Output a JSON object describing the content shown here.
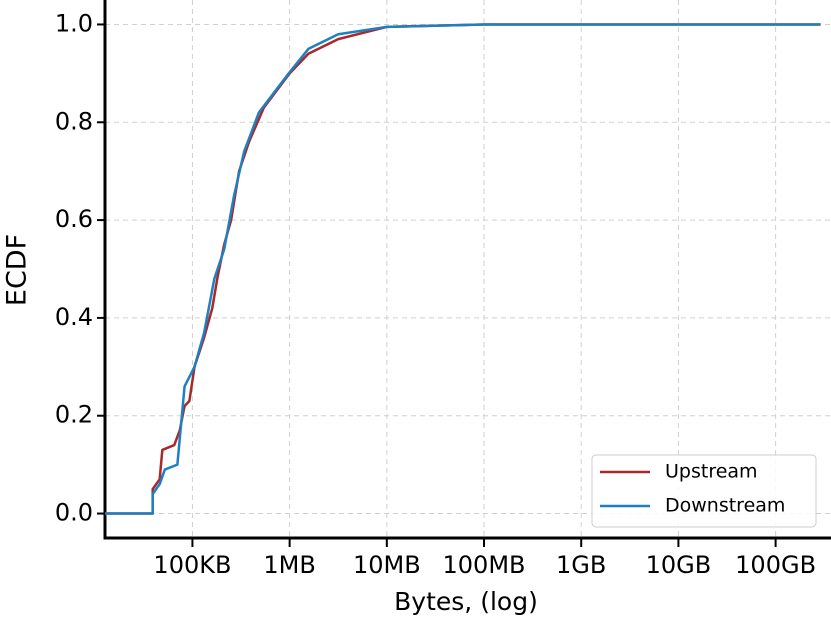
{
  "chart_data": {
    "type": "line",
    "xlabel": "Bytes, (log)",
    "ylabel": "ECDF",
    "xscale": "log",
    "grid": true,
    "legend": "lower right",
    "xlim": [
      12600,
      330000000000
    ],
    "ylim": [
      -0.05,
      1.05
    ],
    "xticks": [
      {
        "value": 100000,
        "label": "100KB"
      },
      {
        "value": 1000000,
        "label": "1MB"
      },
      {
        "value": 10000000,
        "label": "10MB"
      },
      {
        "value": 100000000,
        "label": "100MB"
      },
      {
        "value": 1000000000,
        "label": "1GB"
      },
      {
        "value": 10000000000,
        "label": "10GB"
      },
      {
        "value": 100000000000,
        "label": "100GB"
      }
    ],
    "yticks": [
      {
        "value": 0,
        "label": "0.0"
      },
      0.2,
      0.4,
      0.6,
      0.8,
      {
        "value": 1,
        "label": "1.0"
      }
    ],
    "series": [
      {
        "name": "Upstream",
        "color": "#a52a2a",
        "x": [
          12600,
          39000,
          39000,
          46000,
          49000,
          65000,
          74000,
          83000,
          93000,
          105000,
          132000,
          160000,
          180000,
          212000,
          250000,
          302000,
          382000,
          543000,
          1000000,
          1560000,
          3160000,
          10000000,
          100000000,
          290000000000
        ],
        "values": [
          0,
          0,
          0.05,
          0.07,
          0.13,
          0.14,
          0.17,
          0.22,
          0.23,
          0.3,
          0.36,
          0.42,
          0.48,
          0.55,
          0.6,
          0.7,
          0.76,
          0.83,
          0.9,
          0.94,
          0.97,
          0.995,
          1,
          1
        ]
      },
      {
        "name": "Downstream",
        "color": "#1f7fc0",
        "x": [
          12600,
          39000,
          39000,
          46000,
          52000,
          70000,
          83000,
          105000,
          132000,
          168000,
          212000,
          268000,
          340000,
          483000,
          977000,
          1560000,
          3160000,
          10000000,
          100000000,
          290000000000
        ],
        "values": [
          0,
          0,
          0.04,
          0.06,
          0.09,
          0.1,
          0.26,
          0.3,
          0.37,
          0.48,
          0.54,
          0.65,
          0.74,
          0.82,
          0.9,
          0.95,
          0.98,
          0.995,
          1,
          1
        ]
      }
    ]
  }
}
